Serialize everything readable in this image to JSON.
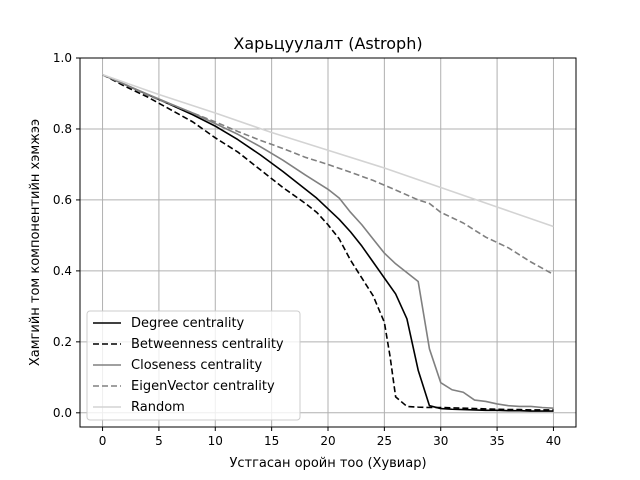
{
  "chart_data": {
    "type": "line",
    "title": "Харьцуулалт (Astroph)",
    "xlabel": "Устгасан оройн тоо (Хувиар)",
    "ylabel": "Хамгийн том компонентийн хэмжээ",
    "xlim": [
      -2,
      42
    ],
    "ylim": [
      -0.04,
      1.0
    ],
    "xticks": [
      0,
      5,
      10,
      15,
      20,
      25,
      30,
      35,
      40
    ],
    "yticks": [
      0.0,
      0.2,
      0.4,
      0.6,
      0.8,
      1.0
    ],
    "grid": true,
    "legend_position": "lower-left",
    "series": [
      {
        "name": "Degree centrality",
        "color": "#000000",
        "dash": "solid",
        "x": [
          0,
          2,
          4,
          6,
          8,
          10,
          12,
          14,
          16,
          18,
          19,
          20,
          21,
          22,
          23,
          24,
          25,
          26,
          27,
          28,
          29,
          30,
          31,
          32,
          33,
          34,
          35,
          36,
          37,
          38,
          39,
          40
        ],
        "y": [
          0.953,
          0.925,
          0.897,
          0.869,
          0.84,
          0.808,
          0.77,
          0.727,
          0.68,
          0.63,
          0.605,
          0.575,
          0.545,
          0.51,
          0.47,
          0.425,
          0.38,
          0.335,
          0.265,
          0.12,
          0.02,
          0.012,
          0.01,
          0.009,
          0.008,
          0.007,
          0.007,
          0.006,
          0.006,
          0.005,
          0.005,
          0.005
        ]
      },
      {
        "name": "Betweenness centrality",
        "color": "#000000",
        "dash": "dashed",
        "x": [
          0,
          2,
          4,
          6,
          8,
          10,
          12,
          14,
          16,
          18,
          19,
          20,
          21,
          22,
          23,
          24,
          25,
          25.5,
          26,
          27,
          28,
          29,
          30,
          31,
          32,
          33,
          34,
          35,
          36,
          37,
          38,
          39,
          40
        ],
        "y": [
          0.953,
          0.92,
          0.89,
          0.855,
          0.82,
          0.775,
          0.735,
          0.685,
          0.635,
          0.59,
          0.565,
          0.53,
          0.49,
          0.43,
          0.38,
          0.33,
          0.255,
          0.16,
          0.045,
          0.018,
          0.016,
          0.015,
          0.015,
          0.014,
          0.013,
          0.012,
          0.011,
          0.01,
          0.009,
          0.009,
          0.008,
          0.008,
          0.008
        ]
      },
      {
        "name": "Closeness centrality",
        "color": "#808080",
        "dash": "solid",
        "x": [
          0,
          2,
          4,
          6,
          8,
          10,
          12,
          14,
          16,
          18,
          20,
          21,
          22,
          23,
          24,
          25,
          26,
          27,
          28,
          29,
          30,
          31,
          32,
          33,
          34,
          35,
          36,
          37,
          38,
          39,
          40
        ],
        "y": [
          0.953,
          0.925,
          0.898,
          0.871,
          0.845,
          0.815,
          0.785,
          0.75,
          0.712,
          0.67,
          0.63,
          0.605,
          0.565,
          0.53,
          0.49,
          0.45,
          0.42,
          0.395,
          0.37,
          0.18,
          0.085,
          0.065,
          0.058,
          0.036,
          0.032,
          0.025,
          0.02,
          0.018,
          0.018,
          0.015,
          0.013
        ]
      },
      {
        "name": "EigenVector centrality",
        "color": "#808080",
        "dash": "dashed",
        "x": [
          0,
          2,
          4,
          6,
          8,
          10,
          12,
          14,
          16,
          18,
          20,
          22,
          24,
          26,
          28,
          29,
          30,
          32,
          34,
          36,
          38,
          40
        ],
        "y": [
          0.953,
          0.925,
          0.895,
          0.87,
          0.845,
          0.82,
          0.793,
          0.768,
          0.745,
          0.72,
          0.7,
          0.678,
          0.655,
          0.628,
          0.6,
          0.59,
          0.565,
          0.535,
          0.495,
          0.465,
          0.425,
          0.39
        ]
      },
      {
        "name": "Random",
        "color": "#d3d3d3",
        "dash": "solid",
        "x": [
          0,
          5,
          10,
          15,
          20,
          25,
          30,
          35,
          40
        ],
        "y": [
          0.953,
          0.897,
          0.845,
          0.79,
          0.74,
          0.69,
          0.635,
          0.58,
          0.525
        ]
      }
    ]
  }
}
